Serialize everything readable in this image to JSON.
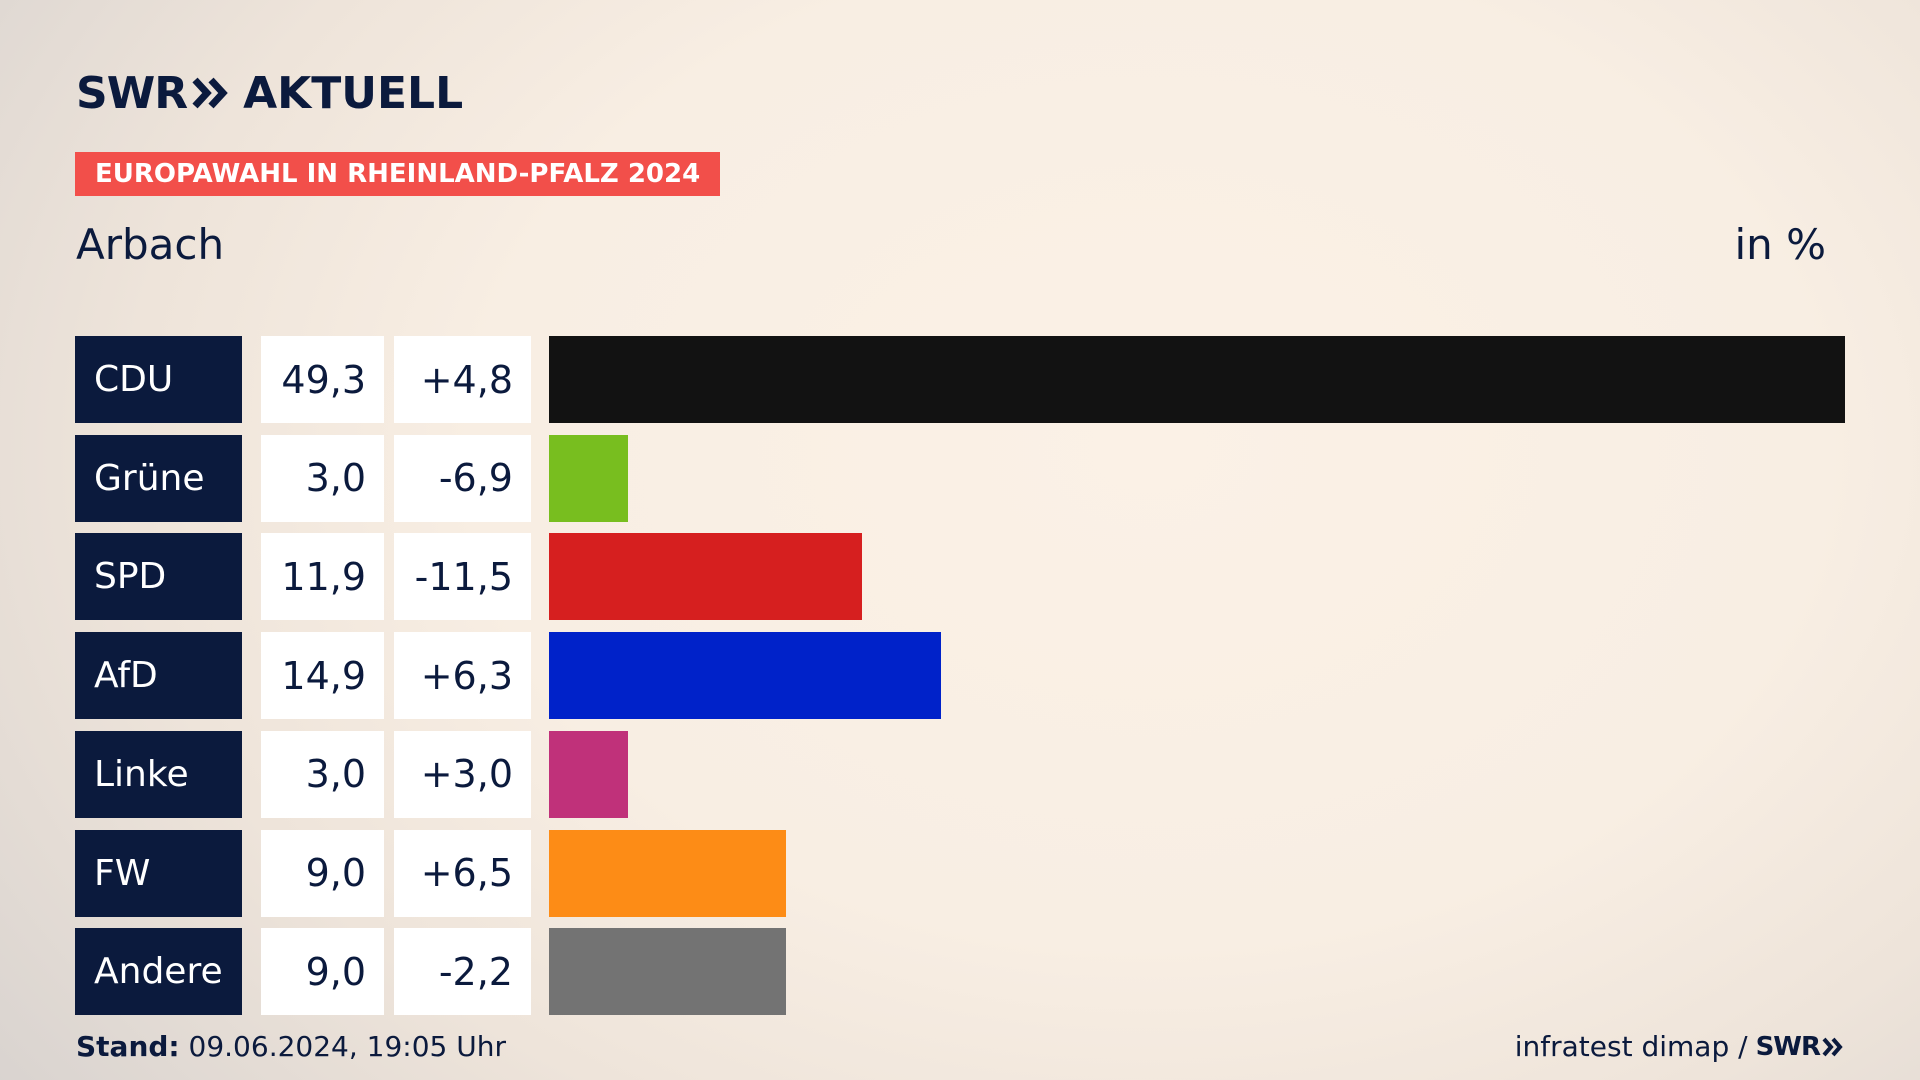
{
  "header": {
    "logo_text": "SWR",
    "logo_icon": "double-chevron-icon",
    "logo_suffix": "AKTUELL",
    "banner": "EUROPAWAHL IN RHEINLAND-PFALZ 2024",
    "place": "Arbach",
    "unit": "in %"
  },
  "chart_data": {
    "type": "bar",
    "orientation": "horizontal",
    "categories": [
      "CDU",
      "Grüne",
      "SPD",
      "AfD",
      "Linke",
      "FW",
      "Andere"
    ],
    "values": [
      49.3,
      3.0,
      11.9,
      14.9,
      3.0,
      9.0,
      9.0
    ],
    "value_labels": [
      "49,3",
      "3,0",
      "11,9",
      "14,9",
      "3,0",
      "9,0",
      "9,0"
    ],
    "diff_labels": [
      "+4,8",
      "-6,9",
      "-11,5",
      "+6,3",
      "+3,0",
      "+6,5",
      "-2,2"
    ],
    "colors": [
      "#121212",
      "#78be1f",
      "#d61f1f",
      "#0022c9",
      "#c0317a",
      "#fd8c16",
      "#737373"
    ],
    "xlim": [
      0,
      49.3
    ],
    "grid": false,
    "legend": "none"
  },
  "footer": {
    "stand_label": "Stand:",
    "stand_value": "09.06.2024, 19:05 Uhr",
    "source": "infratest dimap /",
    "source_logo": "SWR"
  }
}
